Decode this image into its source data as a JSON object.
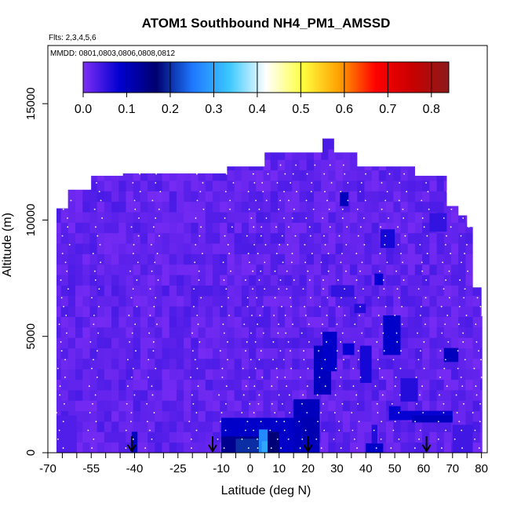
{
  "chart_data": {
    "type": "heatmap",
    "title": "ATOM1 Southbound NH4_PM1_AMSSD",
    "flights_note": "Flts: 2,3,4,5,6",
    "dates_note": "MMDD: 0801,0803,0806,0808,0812",
    "xlabel": "Latitude (deg N)",
    "ylabel": "Altitude (m)",
    "xlim": [
      -70,
      82
    ],
    "ylim": [
      0,
      17500
    ],
    "x_ticks": [
      -70,
      -55,
      -40,
      -25,
      -10,
      0,
      10,
      20,
      30,
      40,
      50,
      60,
      70,
      80
    ],
    "x_tick_labels": [
      "-70",
      "-55",
      "-40",
      "-25",
      "-10",
      "0",
      "10",
      "20",
      "30",
      "40",
      "50",
      "60",
      "70",
      "80"
    ],
    "x_minor_ticks": [
      -65,
      -60,
      -50,
      -45,
      -35,
      -30,
      -20,
      -15,
      -5,
      5,
      15,
      25,
      35,
      45,
      55,
      65,
      75
    ],
    "y_ticks": [
      0,
      5000,
      10000,
      15000
    ],
    "y_tick_labels": [
      "0",
      "5000",
      "10000",
      "15000"
    ],
    "colorbar": {
      "min": 0.0,
      "max": 0.84,
      "tick_values": [
        0.0,
        0.1,
        0.2,
        0.3,
        0.4,
        0.5,
        0.6,
        0.7,
        0.8
      ],
      "tick_labels": [
        "0.0",
        "0.1",
        "0.2",
        "0.3",
        "0.4",
        "0.5",
        "0.6",
        "0.7",
        "0.8"
      ],
      "colors": [
        "#7d2ef5",
        "#0000d0",
        "#00006e",
        "#1e78ff",
        "#3cc8ff",
        "#ffffff",
        "#ffff40",
        "#ffa000",
        "#ff0000",
        "#c80000",
        "#8b1a1a"
      ]
    },
    "background_value": 0.02,
    "envelope": [
      {
        "lat": -67,
        "alt_top": 10500
      },
      {
        "lat": -63,
        "alt_top": 11300
      },
      {
        "lat": -57,
        "alt_top": 11300
      },
      {
        "lat": -55,
        "alt_top": 11900
      },
      {
        "lat": -45,
        "alt_top": 11900
      },
      {
        "lat": -44,
        "alt_top": 12000
      },
      {
        "lat": -10,
        "alt_top": 12000
      },
      {
        "lat": -8,
        "alt_top": 12300
      },
      {
        "lat": 4,
        "alt_top": 12300
      },
      {
        "lat": 5,
        "alt_top": 12900
      },
      {
        "lat": 24,
        "alt_top": 12900
      },
      {
        "lat": 25,
        "alt_top": 13500
      },
      {
        "lat": 28,
        "alt_top": 13500
      },
      {
        "lat": 29,
        "alt_top": 12900
      },
      {
        "lat": 36,
        "alt_top": 12900
      },
      {
        "lat": 37,
        "alt_top": 12300
      },
      {
        "lat": 55,
        "alt_top": 12300
      },
      {
        "lat": 57,
        "alt_top": 11900
      },
      {
        "lat": 68,
        "alt_top": 10600
      },
      {
        "lat": 72,
        "alt_top": 10200
      },
      {
        "lat": 75,
        "alt_top": 9700
      },
      {
        "lat": 77,
        "alt_top": 7100
      },
      {
        "lat": 80,
        "alt_top": 5900
      }
    ],
    "cells": [
      {
        "lat0": -10,
        "lat1": 20,
        "alt0": 0,
        "alt1": 1500,
        "value": 0.09
      },
      {
        "lat0": -10,
        "lat1": 5,
        "alt0": 0,
        "alt1": 700,
        "value": 0.14
      },
      {
        "lat0": -5,
        "lat1": 3,
        "alt0": 0,
        "alt1": 600,
        "value": 0.2
      },
      {
        "lat0": 3,
        "lat1": 6,
        "alt0": 0,
        "alt1": 1000,
        "value": 0.27
      },
      {
        "lat0": 4,
        "lat1": 6,
        "alt0": 0,
        "alt1": 500,
        "value": 0.3
      },
      {
        "lat0": 6,
        "lat1": 10,
        "alt0": 0,
        "alt1": 900,
        "value": 0.16
      },
      {
        "lat0": 15,
        "lat1": 24,
        "alt0": 0,
        "alt1": 2300,
        "value": 0.1
      },
      {
        "lat0": 18,
        "lat1": 24,
        "alt0": 600,
        "alt1": 1500,
        "value": 0.11
      },
      {
        "lat0": 22,
        "lat1": 28,
        "alt0": 2500,
        "alt1": 4600,
        "value": 0.1
      },
      {
        "lat0": 25,
        "lat1": 30,
        "alt0": 3500,
        "alt1": 5200,
        "value": 0.09
      },
      {
        "lat0": 32,
        "lat1": 36,
        "alt0": 4200,
        "alt1": 4700,
        "value": 0.08
      },
      {
        "lat0": 38,
        "lat1": 42,
        "alt0": 3000,
        "alt1": 4600,
        "value": 0.07
      },
      {
        "lat0": 46,
        "lat1": 52,
        "alt0": 4200,
        "alt1": 5900,
        "value": 0.09
      },
      {
        "lat0": 48,
        "lat1": 52,
        "alt0": 1400,
        "alt1": 2000,
        "value": 0.08
      },
      {
        "lat0": 52,
        "lat1": 58,
        "alt0": 2200,
        "alt1": 3200,
        "value": 0.06
      },
      {
        "lat0": 52,
        "lat1": 70,
        "alt0": 1400,
        "alt1": 1800,
        "value": 0.08
      },
      {
        "lat0": 56,
        "lat1": 70,
        "alt0": 1300,
        "alt1": 1600,
        "value": 0.1
      },
      {
        "lat0": 67,
        "lat1": 72,
        "alt0": 3900,
        "alt1": 4500,
        "value": 0.1
      },
      {
        "lat0": 40,
        "lat1": 46,
        "alt0": 0,
        "alt1": 400,
        "value": 0.09
      },
      {
        "lat0": 43,
        "lat1": 46,
        "alt0": 7200,
        "alt1": 7700,
        "value": 0.08
      },
      {
        "lat0": 45,
        "lat1": 50,
        "alt0": 8800,
        "alt1": 9600,
        "value": 0.07
      },
      {
        "lat0": 31,
        "lat1": 34,
        "alt0": 10600,
        "alt1": 11200,
        "value": 0.1
      },
      {
        "lat0": 28,
        "lat1": 36,
        "alt0": 6700,
        "alt1": 7200,
        "value": 0.05
      },
      {
        "lat0": 36,
        "lat1": 40,
        "alt0": 6000,
        "alt1": 6400,
        "value": 0.06
      },
      {
        "lat0": 42,
        "lat1": 44,
        "alt0": 400,
        "alt1": 1200,
        "value": 0.06
      },
      {
        "lat0": 62,
        "lat1": 68,
        "alt0": 9500,
        "alt1": 10300,
        "value": 0.05
      },
      {
        "lat0": -41,
        "lat1": -39,
        "alt0": 0,
        "alt1": 900,
        "value": 0.1
      },
      {
        "lat0": -67,
        "lat1": -60,
        "alt0": 0,
        "alt1": 1600,
        "value": 0.03
      },
      {
        "lat0": 70,
        "lat1": 77,
        "alt0": 0,
        "alt1": 1200,
        "value": 0.04
      }
    ],
    "flight_tracks": [
      {
        "x": [
          -66,
          -55,
          -42,
          -35,
          -20,
          -10,
          -2,
          2,
          8,
          12,
          18,
          24,
          30,
          36,
          44,
          50,
          58,
          66,
          72,
          78
        ],
        "note": "profiles"
      }
    ],
    "arrow_latitudes": [
      -41,
      -13,
      20,
      61
    ]
  }
}
